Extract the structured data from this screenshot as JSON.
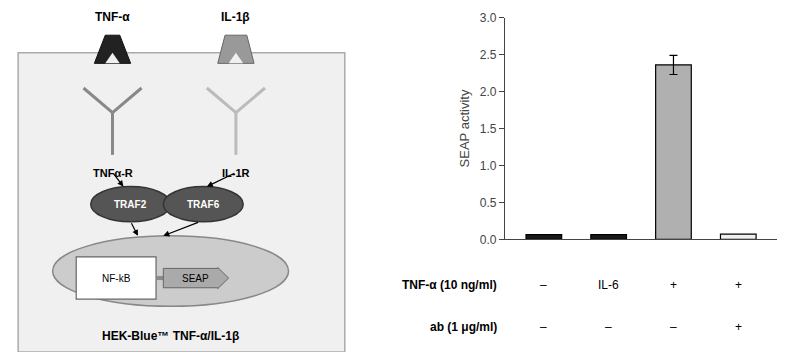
{
  "chart_data": {
    "type": "bar",
    "categories": [
      null,
      null,
      null,
      null
    ],
    "values": [
      0.065,
      0.065,
      2.36,
      0.07
    ],
    "errors": [
      0.0,
      0.0,
      0.13,
      0.0
    ],
    "colors": [
      "#1a1a1a",
      "#1a1a1a",
      "#b0b0b0",
      "#f0f0f0"
    ],
    "ylabel": "SEAP activity",
    "ylim": [
      0.0,
      3.0
    ],
    "yticks": [
      {
        "value": 0,
        "label": "0.0"
      },
      0.5,
      {
        "value": 1,
        "label": "1.0"
      },
      1.5,
      {
        "value": 2,
        "label": "2.0"
      },
      2.5,
      {
        "value": 3,
        "label": "3.0"
      }
    ],
    "grid": false,
    "tick_labels": "y",
    "annotations": [
      {
        "label": "TNF-α (10 ng/ml)",
        "values": [
          "–",
          "IL-6",
          "+",
          "+"
        ]
      },
      {
        "label": "ab (1 μg/ml)",
        "values": [
          "–",
          "–",
          "–",
          "+"
        ]
      },
      {
        "text": "TNF-α"
      },
      {
        "text": "IL-1β"
      },
      {
        "text": "TNFα-R"
      },
      {
        "text": "IL-1R"
      },
      {
        "text": "TRAF2"
      },
      {
        "text": "TRAF6"
      },
      {
        "text": "NF-kB"
      },
      {
        "text": "SEAP"
      },
      {
        "text": "HEK-Blue™ TNF-α/IL-1β"
      }
    ]
  }
}
